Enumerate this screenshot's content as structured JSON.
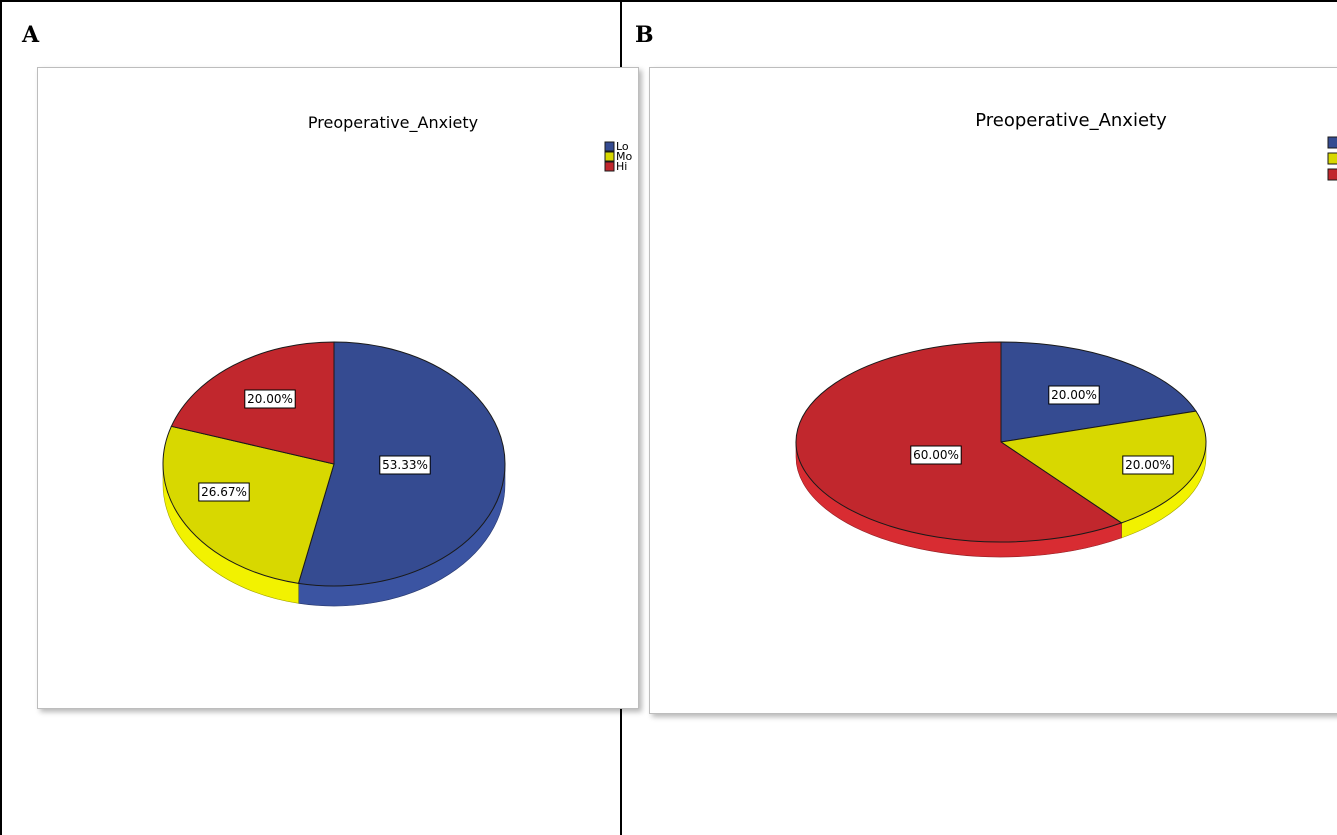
{
  "panels": [
    {
      "letter": "A"
    },
    {
      "letter": "B"
    }
  ],
  "colors": {
    "low": "#354b91",
    "moderate": "#d8d800",
    "high": "#c1272d"
  },
  "chart_data": [
    {
      "type": "pie",
      "title": "Preoperative_Anxiety",
      "legend": {
        "placement": "top-right",
        "entries": [
          "Lo",
          "Mo",
          "Hi"
        ]
      },
      "slices": [
        {
          "label": "53.33%",
          "value": 53.33,
          "color_key": "low"
        },
        {
          "label": "26.67%",
          "value": 26.67,
          "color_key": "moderate"
        },
        {
          "label": "20.00%",
          "value": 20.0,
          "color_key": "high"
        }
      ]
    },
    {
      "type": "pie",
      "title": "Preoperative_Anxiety",
      "legend": {
        "placement": "top-right",
        "entries": [
          "",
          "",
          ""
        ]
      },
      "slices": [
        {
          "label": "20.00%",
          "value": 20.0,
          "color_key": "low"
        },
        {
          "label": "20.00%",
          "value": 20.0,
          "color_key": "moderate"
        },
        {
          "label": "60.00%",
          "value": 60.0,
          "color_key": "high"
        }
      ]
    }
  ]
}
